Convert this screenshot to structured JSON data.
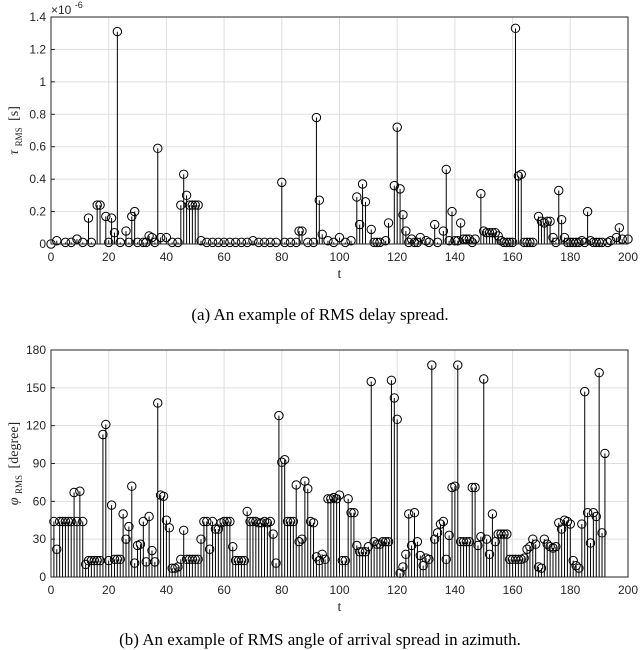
{
  "chart_data": [
    {
      "type": "stem",
      "x_label": "t",
      "y_label_symbol": "τ",
      "y_label_sub": "RMS",
      "y_label_unit": "[s]",
      "y_exponent_label": "×10",
      "y_exponent_power": "-6",
      "caption": "(a) An example of RMS delay spread.",
      "xlim": [
        0,
        200
      ],
      "ylim": [
        0,
        1.4
      ],
      "x_ticks": [
        "0",
        "20",
        "40",
        "60",
        "80",
        "100",
        "120",
        "140",
        "160",
        "180",
        "200"
      ],
      "y_ticks": [
        "0",
        "0.2",
        "0.4",
        "0.6",
        "0.8",
        "1",
        "1.2",
        "1.4"
      ],
      "grid": true,
      "values_scale": "1e-6",
      "points": [
        [
          0,
          0
        ],
        [
          2,
          0.02
        ],
        [
          5,
          0.01
        ],
        [
          7,
          0.01
        ],
        [
          9,
          0.03
        ],
        [
          11,
          0.01
        ],
        [
          13,
          0.16
        ],
        [
          14,
          0.01
        ],
        [
          16,
          0.24
        ],
        [
          17,
          0.24
        ],
        [
          19,
          0.17
        ],
        [
          20,
          0.01
        ],
        [
          21,
          0.16
        ],
        [
          22,
          0.07
        ],
        [
          23,
          1.31
        ],
        [
          24,
          0.01
        ],
        [
          26,
          0.08
        ],
        [
          27,
          0.01
        ],
        [
          28,
          0.17
        ],
        [
          29,
          0.2
        ],
        [
          30,
          0.01
        ],
        [
          32,
          0.01
        ],
        [
          33,
          0.01
        ],
        [
          34,
          0.05
        ],
        [
          35,
          0.04
        ],
        [
          36,
          0.01
        ],
        [
          37,
          0.59
        ],
        [
          38,
          0.04
        ],
        [
          40,
          0.04
        ],
        [
          42,
          0.01
        ],
        [
          44,
          0.01
        ],
        [
          45,
          0.24
        ],
        [
          46,
          0.43
        ],
        [
          47,
          0.3
        ],
        [
          48,
          0.24
        ],
        [
          49,
          0.24
        ],
        [
          50,
          0.24
        ],
        [
          51,
          0.24
        ],
        [
          52,
          0.02
        ],
        [
          54,
          0.01
        ],
        [
          56,
          0.01
        ],
        [
          58,
          0.01
        ],
        [
          60,
          0.01
        ],
        [
          62,
          0.01
        ],
        [
          64,
          0.01
        ],
        [
          66,
          0.01
        ],
        [
          68,
          0.01
        ],
        [
          70,
          0.02
        ],
        [
          72,
          0.01
        ],
        [
          74,
          0.01
        ],
        [
          76,
          0.01
        ],
        [
          78,
          0.01
        ],
        [
          80,
          0.38
        ],
        [
          81,
          0.01
        ],
        [
          83,
          0.01
        ],
        [
          85,
          0.01
        ],
        [
          86,
          0.08
        ],
        [
          87,
          0.08
        ],
        [
          89,
          0.01
        ],
        [
          91,
          0.01
        ],
        [
          92,
          0.78
        ],
        [
          93,
          0.27
        ],
        [
          94,
          0.06
        ],
        [
          96,
          0.02
        ],
        [
          98,
          0.01
        ],
        [
          100,
          0.04
        ],
        [
          102,
          0.01
        ],
        [
          104,
          0.02
        ],
        [
          106,
          0.29
        ],
        [
          107,
          0.12
        ],
        [
          108,
          0.37
        ],
        [
          109,
          0.26
        ],
        [
          111,
          0.09
        ],
        [
          112,
          0.01
        ],
        [
          113,
          0.01
        ],
        [
          114,
          0.01
        ],
        [
          116,
          0.02
        ],
        [
          117,
          0.13
        ],
        [
          119,
          0.36
        ],
        [
          120,
          0.72
        ],
        [
          121,
          0.34
        ],
        [
          122,
          0.18
        ],
        [
          123,
          0.08
        ],
        [
          124,
          0.01
        ],
        [
          125,
          0.03
        ],
        [
          126,
          0.01
        ],
        [
          127,
          0.01
        ],
        [
          128,
          0.04
        ],
        [
          130,
          0.02
        ],
        [
          131,
          0.01
        ],
        [
          133,
          0.12
        ],
        [
          134,
          0.01
        ],
        [
          136,
          0.08
        ],
        [
          137,
          0.46
        ],
        [
          138,
          0.02
        ],
        [
          139,
          0.2
        ],
        [
          140,
          0.02
        ],
        [
          141,
          0.02
        ],
        [
          142,
          0.13
        ],
        [
          143,
          0.03
        ],
        [
          144,
          0.03
        ],
        [
          145,
          0.03
        ],
        [
          146,
          0.01
        ],
        [
          147,
          0.03
        ],
        [
          149,
          0.31
        ],
        [
          150,
          0.08
        ],
        [
          151,
          0.07
        ],
        [
          152,
          0.07
        ],
        [
          153,
          0.07
        ],
        [
          154,
          0.07
        ],
        [
          155,
          0.05
        ],
        [
          156,
          0.02
        ],
        [
          157,
          0.01
        ],
        [
          158,
          0.01
        ],
        [
          159,
          0.01
        ],
        [
          160,
          0.01
        ],
        [
          161,
          1.33
        ],
        [
          162,
          0.42
        ],
        [
          163,
          0.43
        ],
        [
          164,
          0.01
        ],
        [
          165,
          0.01
        ],
        [
          166,
          0.01
        ],
        [
          167,
          0.01
        ],
        [
          169,
          0.17
        ],
        [
          170,
          0.14
        ],
        [
          171,
          0.13
        ],
        [
          172,
          0.14
        ],
        [
          173,
          0.14
        ],
        [
          174,
          0.04
        ],
        [
          175,
          0.01
        ],
        [
          176,
          0.33
        ],
        [
          177,
          0.15
        ],
        [
          178,
          0.04
        ],
        [
          179,
          0.01
        ],
        [
          180,
          0.01
        ],
        [
          181,
          0.01
        ],
        [
          182,
          0.01
        ],
        [
          183,
          0.01
        ],
        [
          184,
          0.02
        ],
        [
          185,
          0.01
        ],
        [
          186,
          0.2
        ],
        [
          187,
          0.02
        ],
        [
          188,
          0.01
        ],
        [
          189,
          0.01
        ],
        [
          190,
          0.01
        ],
        [
          191,
          0.01
        ],
        [
          193,
          0.01
        ],
        [
          194,
          0.02
        ],
        [
          196,
          0.04
        ],
        [
          197,
          0.1
        ],
        [
          198,
          0.03
        ],
        [
          200,
          0.03
        ]
      ]
    },
    {
      "type": "stem",
      "x_label": "t",
      "y_label_symbol": "φ",
      "y_label_sub": "RMS",
      "y_label_unit": "[degree]",
      "caption": "(b) An example of RMS angle of arrival spread in azimuth.",
      "xlim": [
        0,
        200
      ],
      "ylim": [
        0,
        180
      ],
      "x_ticks": [
        "0",
        "20",
        "40",
        "60",
        "80",
        "100",
        "120",
        "140",
        "160",
        "180",
        "200"
      ],
      "y_ticks": [
        "0",
        "30",
        "60",
        "90",
        "120",
        "150",
        "180"
      ],
      "grid": true,
      "points": [
        [
          1,
          44
        ],
        [
          2,
          22
        ],
        [
          3,
          44
        ],
        [
          4,
          44
        ],
        [
          5,
          44
        ],
        [
          6,
          44
        ],
        [
          7,
          44
        ],
        [
          8,
          67
        ],
        [
          9,
          44
        ],
        [
          10,
          68
        ],
        [
          11,
          44
        ],
        [
          12,
          10
        ],
        [
          13,
          13
        ],
        [
          14,
          13
        ],
        [
          15,
          13
        ],
        [
          16,
          13
        ],
        [
          17,
          13
        ],
        [
          18,
          113
        ],
        [
          19,
          121
        ],
        [
          20,
          13
        ],
        [
          21,
          57
        ],
        [
          22,
          14
        ],
        [
          23,
          14
        ],
        [
          24,
          14
        ],
        [
          25,
          50
        ],
        [
          26,
          30
        ],
        [
          27,
          40
        ],
        [
          28,
          72
        ],
        [
          29,
          11
        ],
        [
          30,
          25
        ],
        [
          31,
          26
        ],
        [
          32,
          44
        ],
        [
          33,
          12
        ],
        [
          34,
          48
        ],
        [
          35,
          21
        ],
        [
          36,
          12
        ],
        [
          37,
          138
        ],
        [
          38,
          65
        ],
        [
          39,
          64
        ],
        [
          40,
          45
        ],
        [
          41,
          39
        ],
        [
          42,
          7
        ],
        [
          43,
          7
        ],
        [
          44,
          8
        ],
        [
          45,
          14
        ],
        [
          46,
          37
        ],
        [
          47,
          14
        ],
        [
          48,
          14
        ],
        [
          49,
          14
        ],
        [
          50,
          14
        ],
        [
          51,
          14
        ],
        [
          52,
          30
        ],
        [
          53,
          44
        ],
        [
          54,
          44
        ],
        [
          55,
          22
        ],
        [
          56,
          44
        ],
        [
          57,
          38
        ],
        [
          58,
          38
        ],
        [
          59,
          43
        ],
        [
          60,
          44
        ],
        [
          61,
          44
        ],
        [
          62,
          44
        ],
        [
          63,
          24
        ],
        [
          64,
          13
        ],
        [
          65,
          13
        ],
        [
          66,
          13
        ],
        [
          67,
          13
        ],
        [
          68,
          52
        ],
        [
          69,
          44
        ],
        [
          70,
          44
        ],
        [
          71,
          44
        ],
        [
          72,
          43
        ],
        [
          73,
          43
        ],
        [
          74,
          44
        ],
        [
          75,
          43
        ],
        [
          76,
          44
        ],
        [
          77,
          34
        ],
        [
          78,
          11
        ],
        [
          79,
          128
        ],
        [
          80,
          91
        ],
        [
          81,
          93
        ],
        [
          82,
          44
        ],
        [
          83,
          44
        ],
        [
          84,
          44
        ],
        [
          85,
          73
        ],
        [
          86,
          28
        ],
        [
          87,
          30
        ],
        [
          88,
          76
        ],
        [
          89,
          70
        ],
        [
          90,
          44
        ],
        [
          91,
          43
        ],
        [
          92,
          16
        ],
        [
          93,
          13
        ],
        [
          94,
          18
        ],
        [
          95,
          14
        ],
        [
          96,
          62
        ],
        [
          97,
          62
        ],
        [
          98,
          63
        ],
        [
          99,
          62
        ],
        [
          100,
          65
        ],
        [
          101,
          13
        ],
        [
          102,
          13
        ],
        [
          103,
          62
        ],
        [
          104,
          51
        ],
        [
          105,
          51
        ],
        [
          106,
          25
        ],
        [
          107,
          20
        ],
        [
          108,
          20
        ],
        [
          109,
          20
        ],
        [
          110,
          24
        ],
        [
          111,
          155
        ],
        [
          112,
          28
        ],
        [
          113,
          26
        ],
        [
          114,
          26
        ],
        [
          115,
          28
        ],
        [
          116,
          28
        ],
        [
          117,
          28
        ],
        [
          118,
          156
        ],
        [
          119,
          142
        ],
        [
          120,
          125
        ],
        [
          121,
          3
        ],
        [
          122,
          8
        ],
        [
          123,
          18
        ],
        [
          124,
          50
        ],
        [
          125,
          25
        ],
        [
          126,
          51
        ],
        [
          127,
          28
        ],
        [
          128,
          17
        ],
        [
          129,
          9
        ],
        [
          130,
          15
        ],
        [
          131,
          14
        ],
        [
          132,
          168
        ],
        [
          133,
          30
        ],
        [
          134,
          35
        ],
        [
          135,
          42
        ],
        [
          136,
          44
        ],
        [
          137,
          14
        ],
        [
          138,
          33
        ],
        [
          139,
          71
        ],
        [
          140,
          72
        ],
        [
          141,
          168
        ],
        [
          142,
          28
        ],
        [
          143,
          28
        ],
        [
          144,
          28
        ],
        [
          145,
          28
        ],
        [
          146,
          71
        ],
        [
          147,
          71
        ],
        [
          148,
          25
        ],
        [
          149,
          32
        ],
        [
          150,
          157
        ],
        [
          151,
          30
        ],
        [
          152,
          18
        ],
        [
          153,
          50
        ],
        [
          154,
          28
        ],
        [
          155,
          34
        ],
        [
          156,
          34
        ],
        [
          157,
          34
        ],
        [
          158,
          34
        ],
        [
          159,
          14
        ],
        [
          160,
          14
        ],
        [
          161,
          14
        ],
        [
          162,
          14
        ],
        [
          163,
          14
        ],
        [
          164,
          15
        ],
        [
          165,
          22
        ],
        [
          166,
          24
        ],
        [
          167,
          30
        ],
        [
          168,
          26
        ],
        [
          169,
          8
        ],
        [
          170,
          7
        ],
        [
          171,
          30
        ],
        [
          172,
          26
        ],
        [
          173,
          24
        ],
        [
          174,
          23
        ],
        [
          175,
          24
        ],
        [
          176,
          43
        ],
        [
          177,
          38
        ],
        [
          178,
          45
        ],
        [
          179,
          44
        ],
        [
          180,
          42
        ],
        [
          181,
          13
        ],
        [
          182,
          9
        ],
        [
          183,
          7
        ],
        [
          184,
          42
        ],
        [
          185,
          147
        ],
        [
          186,
          51
        ],
        [
          187,
          27
        ],
        [
          188,
          51
        ],
        [
          189,
          48
        ],
        [
          190,
          162
        ],
        [
          191,
          35
        ],
        [
          192,
          98
        ]
      ]
    }
  ]
}
